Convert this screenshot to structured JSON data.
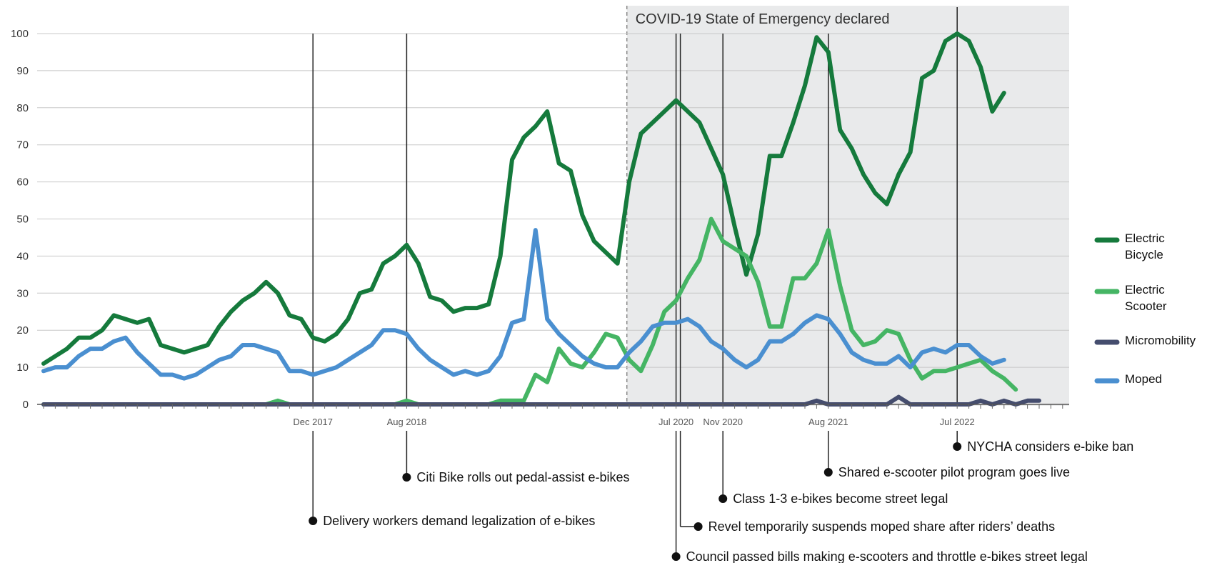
{
  "chart_data": {
    "type": "line",
    "title": "",
    "xlabel": "",
    "ylabel": "",
    "ylim": [
      0,
      100
    ],
    "yticks": [
      0,
      10,
      20,
      30,
      40,
      50,
      60,
      70,
      80,
      90,
      100
    ],
    "grid": true,
    "legend_position": "right",
    "x_start": "2016-01",
    "x_end": "2023-12",
    "x_ticks": [
      {
        "date": "2017-12",
        "label": "Dec 2017"
      },
      {
        "date": "2018-08",
        "label": "Aug 2018"
      },
      {
        "date": "2020-07",
        "label": "Jul 2020"
      },
      {
        "date": "2020-11",
        "label": "Nov 2020"
      },
      {
        "date": "2021-08",
        "label": "Aug 2021"
      },
      {
        "date": "2022-07",
        "label": "Jul 2022"
      }
    ],
    "shaded_region": {
      "start": "2020-03",
      "end": "2023-12",
      "label": "COVID-19 State of Emergency declared",
      "color": "#e9eaeb"
    },
    "annotations": [
      {
        "date": "2017-12",
        "text": "Delivery workers demand legalization of e-bikes"
      },
      {
        "date": "2018-08",
        "text": "Citi Bike rolls out pedal-assist e-bikes"
      },
      {
        "date": "2020-07",
        "text": "Council passed bills making e-scooters and throttle e-bikes street legal"
      },
      {
        "date": "2020-07",
        "text": "Revel temporarily suspends moped share after riders’ deaths"
      },
      {
        "date": "2020-11",
        "text": "Class 1-3 e-bikes become street legal"
      },
      {
        "date": "2021-08",
        "text": "Shared e-scooter pilot program goes live"
      },
      {
        "date": "2022-07",
        "text": "NYCHA considers e-bike ban"
      }
    ],
    "series": [
      {
        "name": "Electric Bicycle",
        "color": "#157a3c",
        "values": [
          11,
          13,
          15,
          18,
          18,
          20,
          24,
          23,
          22,
          23,
          16,
          15,
          14,
          15,
          16,
          21,
          25,
          28,
          30,
          33,
          30,
          24,
          23,
          18,
          17,
          19,
          23,
          30,
          31,
          38,
          40,
          43,
          38,
          29,
          28,
          25,
          26,
          26,
          27,
          40,
          66,
          72,
          75,
          79,
          65,
          63,
          51,
          44,
          41,
          38,
          60,
          73,
          76,
          79,
          82,
          79,
          76,
          69,
          62,
          48,
          35,
          46,
          67,
          67,
          76,
          86,
          99,
          95,
          74,
          69,
          62,
          57,
          54,
          62,
          68,
          88,
          90,
          98,
          100,
          98,
          91,
          79,
          84
        ]
      },
      {
        "name": "Electric Scooter",
        "color": "#45b564",
        "values": [
          0,
          0,
          0,
          0,
          0,
          0,
          0,
          0,
          0,
          0,
          0,
          0,
          0,
          0,
          0,
          0,
          0,
          0,
          0,
          0,
          1,
          0,
          0,
          0,
          0,
          0,
          0,
          0,
          0,
          0,
          0,
          1,
          0,
          0,
          0,
          0,
          0,
          0,
          0,
          1,
          1,
          1,
          8,
          6,
          15,
          11,
          10,
          14,
          19,
          18,
          12,
          9,
          16,
          25,
          28,
          34,
          39,
          50,
          44,
          42,
          40,
          33,
          21,
          21,
          34,
          34,
          38,
          47,
          32,
          20,
          16,
          17,
          20,
          19,
          12,
          7,
          9,
          9,
          10,
          11,
          12,
          9,
          7,
          4
        ]
      },
      {
        "name": "Micromobility",
        "color": "#454d6e",
        "values": [
          0,
          0,
          0,
          0,
          0,
          0,
          0,
          0,
          0,
          0,
          0,
          0,
          0,
          0,
          0,
          0,
          0,
          0,
          0,
          0,
          0,
          0,
          0,
          0,
          0,
          0,
          0,
          0,
          0,
          0,
          0,
          0,
          0,
          0,
          0,
          0,
          0,
          0,
          0,
          0,
          0,
          0,
          0,
          0,
          0,
          0,
          0,
          0,
          0,
          0,
          0,
          0,
          0,
          0,
          0,
          0,
          0,
          0,
          0,
          0,
          0,
          0,
          0,
          0,
          0,
          0,
          1,
          0,
          0,
          0,
          0,
          0,
          0,
          2,
          0,
          0,
          0,
          0,
          0,
          0,
          1,
          0,
          1,
          0,
          1,
          1
        ]
      },
      {
        "name": "Moped",
        "color": "#4a8fd0",
        "values": [
          9,
          10,
          10,
          13,
          15,
          15,
          17,
          18,
          14,
          11,
          8,
          8,
          7,
          8,
          10,
          12,
          13,
          16,
          16,
          15,
          14,
          9,
          9,
          8,
          9,
          10,
          12,
          14,
          16,
          20,
          20,
          19,
          15,
          12,
          10,
          8,
          9,
          8,
          9,
          13,
          22,
          23,
          47,
          23,
          19,
          16,
          13,
          11,
          10,
          10,
          14,
          17,
          21,
          22,
          22,
          23,
          21,
          17,
          15,
          12,
          10,
          12,
          17,
          17,
          19,
          22,
          24,
          23,
          19,
          14,
          12,
          11,
          11,
          13,
          10,
          14,
          15,
          14,
          16,
          16,
          13,
          11,
          12
        ]
      }
    ]
  },
  "legend": [
    {
      "lines": [
        "Electric",
        "Bicycle"
      ],
      "color": "#157a3c"
    },
    {
      "lines": [
        "Electric",
        "Scooter"
      ],
      "color": "#45b564"
    },
    {
      "lines": [
        "Micromobility"
      ],
      "color": "#454d6e"
    },
    {
      "lines": [
        "Moped"
      ],
      "color": "#4a8fd0"
    }
  ]
}
